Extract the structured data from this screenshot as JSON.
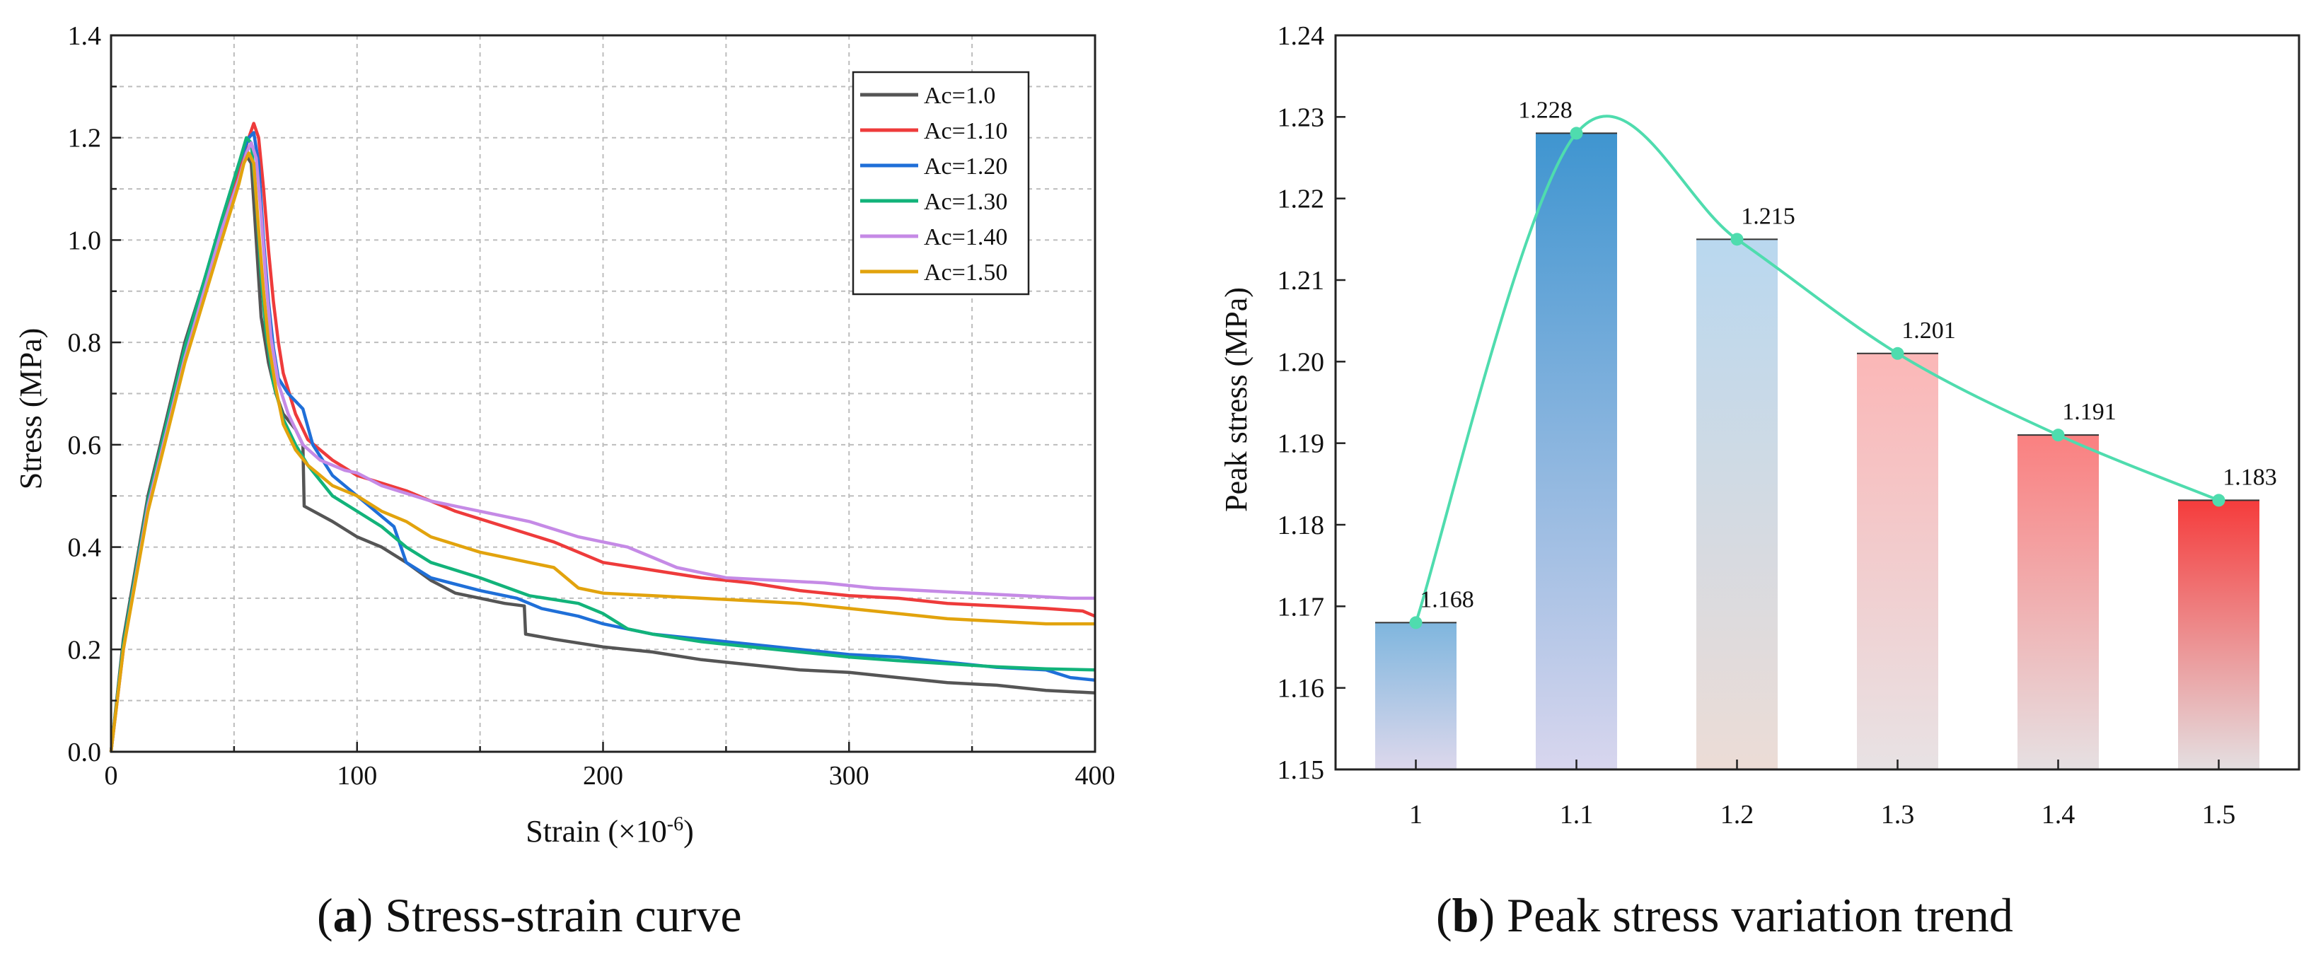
{
  "chart_data": [
    {
      "type": "line",
      "panel": "a",
      "caption_letter": "a",
      "caption_text": "Stress-strain curve",
      "xlabel_base": "Strain (×10",
      "xlabel_exp": "-6",
      "xlabel_close": ")",
      "ylabel": "Stress (MPa)",
      "xlim": [
        0,
        400
      ],
      "ylim": [
        0,
        1.4
      ],
      "xticks": [
        "0",
        "100",
        "200",
        "300",
        "400"
      ],
      "yticks": [
        "0.0",
        "0.2",
        "0.4",
        "0.6",
        "0.8",
        "1.0",
        "1.2",
        "1.4"
      ],
      "grid": true,
      "legend_position": "top-right",
      "series": [
        {
          "name": "Ac=1.0",
          "color": "#555555",
          "x": [
            0,
            5,
            15,
            30,
            45,
            52,
            55,
            57,
            59,
            61,
            64,
            67,
            70,
            75,
            78,
            78.5,
            90,
            100,
            110,
            120,
            130,
            140,
            150,
            160,
            168,
            168.5,
            180,
            200,
            220,
            240,
            260,
            280,
            300,
            320,
            340,
            360,
            380,
            400
          ],
          "y": [
            0,
            0.22,
            0.5,
            0.8,
            1.03,
            1.13,
            1.165,
            1.15,
            1.0,
            0.85,
            0.76,
            0.7,
            0.66,
            0.63,
            0.6,
            0.48,
            0.45,
            0.42,
            0.4,
            0.37,
            0.335,
            0.31,
            0.3,
            0.29,
            0.285,
            0.23,
            0.22,
            0.205,
            0.195,
            0.18,
            0.17,
            0.16,
            0.155,
            0.145,
            0.135,
            0.13,
            0.12,
            0.115
          ]
        },
        {
          "name": "Ac=1.10",
          "color": "#ee3b3b",
          "x": [
            0,
            5,
            15,
            30,
            45,
            52,
            56,
            58,
            60,
            62,
            64,
            66,
            68,
            70,
            75,
            80,
            90,
            100,
            120,
            140,
            160,
            180,
            200,
            220,
            240,
            260,
            280,
            300,
            320,
            340,
            360,
            380,
            395,
            400
          ],
          "y": [
            0,
            0.2,
            0.48,
            0.78,
            1.03,
            1.14,
            1.2,
            1.228,
            1.2,
            1.1,
            0.98,
            0.88,
            0.8,
            0.74,
            0.66,
            0.61,
            0.57,
            0.54,
            0.51,
            0.47,
            0.44,
            0.41,
            0.37,
            0.355,
            0.34,
            0.33,
            0.315,
            0.305,
            0.3,
            0.29,
            0.285,
            0.28,
            0.275,
            0.265
          ]
        },
        {
          "name": "Ac=1.20",
          "color": "#1f6fd8",
          "x": [
            0,
            5,
            15,
            30,
            45,
            52,
            56,
            58,
            60,
            62,
            64,
            66,
            68,
            72,
            78,
            82,
            90,
            100,
            110,
            115,
            120,
            130,
            150,
            165,
            175,
            190,
            200,
            220,
            240,
            260,
            280,
            300,
            320,
            340,
            360,
            380,
            390,
            400
          ],
          "y": [
            0,
            0.21,
            0.49,
            0.79,
            1.04,
            1.15,
            1.2,
            1.21,
            1.15,
            1.0,
            0.88,
            0.79,
            0.73,
            0.7,
            0.67,
            0.6,
            0.54,
            0.5,
            0.46,
            0.44,
            0.37,
            0.34,
            0.315,
            0.3,
            0.28,
            0.265,
            0.25,
            0.23,
            0.22,
            0.21,
            0.2,
            0.19,
            0.185,
            0.175,
            0.165,
            0.16,
            0.145,
            0.14
          ]
        },
        {
          "name": "Ac=1.30",
          "color": "#12b37a",
          "x": [
            0,
            5,
            15,
            30,
            45,
            52,
            55,
            57,
            59,
            61,
            63,
            66,
            70,
            75,
            80,
            90,
            100,
            110,
            120,
            130,
            150,
            170,
            190,
            200,
            210,
            220,
            240,
            260,
            280,
            300,
            320,
            340,
            360,
            380,
            400
          ],
          "y": [
            0,
            0.21,
            0.49,
            0.79,
            1.04,
            1.15,
            1.2,
            1.19,
            1.08,
            0.93,
            0.82,
            0.72,
            0.65,
            0.6,
            0.56,
            0.5,
            0.47,
            0.44,
            0.4,
            0.37,
            0.34,
            0.305,
            0.29,
            0.27,
            0.24,
            0.23,
            0.215,
            0.205,
            0.195,
            0.185,
            0.178,
            0.172,
            0.166,
            0.162,
            0.16
          ]
        },
        {
          "name": "Ac=1.40",
          "color": "#c58ae6",
          "x": [
            0,
            5,
            15,
            30,
            45,
            52,
            55,
            57,
            59,
            61,
            63,
            65,
            68,
            72,
            78,
            85,
            95,
            100,
            110,
            130,
            150,
            170,
            190,
            210,
            220,
            230,
            240,
            250,
            270,
            290,
            310,
            330,
            350,
            370,
            390,
            400
          ],
          "y": [
            0,
            0.2,
            0.48,
            0.77,
            1.02,
            1.12,
            1.17,
            1.19,
            1.16,
            1.05,
            0.92,
            0.81,
            0.72,
            0.66,
            0.6,
            0.57,
            0.55,
            0.545,
            0.52,
            0.49,
            0.47,
            0.45,
            0.42,
            0.4,
            0.38,
            0.36,
            0.35,
            0.34,
            0.335,
            0.33,
            0.32,
            0.315,
            0.31,
            0.305,
            0.3,
            0.3
          ]
        },
        {
          "name": "Ac=1.50",
          "color": "#e2a30d",
          "x": [
            0,
            5,
            15,
            30,
            45,
            52,
            54,
            56,
            58,
            60,
            62,
            64,
            67,
            70,
            75,
            80,
            90,
            100,
            110,
            120,
            130,
            150,
            170,
            180,
            190,
            200,
            220,
            240,
            260,
            280,
            300,
            320,
            340,
            360,
            380,
            400
          ],
          "y": [
            0,
            0.2,
            0.47,
            0.76,
            1.0,
            1.11,
            1.15,
            1.17,
            1.15,
            1.02,
            0.9,
            0.8,
            0.71,
            0.64,
            0.59,
            0.56,
            0.52,
            0.5,
            0.47,
            0.45,
            0.42,
            0.39,
            0.37,
            0.36,
            0.32,
            0.31,
            0.305,
            0.3,
            0.295,
            0.29,
            0.28,
            0.27,
            0.26,
            0.255,
            0.25,
            0.25
          ]
        }
      ]
    },
    {
      "type": "bar",
      "panel": "b",
      "caption_letter": "b",
      "caption_text": "Peak stress variation trend",
      "xlabel": "",
      "ylabel": "Peak stress (MPa)",
      "ylim": [
        1.15,
        1.24
      ],
      "yticks": [
        "1.15",
        "1.16",
        "1.17",
        "1.18",
        "1.19",
        "1.20",
        "1.21",
        "1.22",
        "1.23",
        "1.24"
      ],
      "categories": [
        "1",
        "1.1",
        "1.2",
        "1.3",
        "1.4",
        "1.5"
      ],
      "values": [
        1.168,
        1.228,
        1.215,
        1.201,
        1.191,
        1.183
      ],
      "labels": [
        "1.168",
        "1.228",
        "1.215",
        "1.201",
        "1.191",
        "1.183"
      ],
      "bar_colors": [
        {
          "top": "#7fb6de",
          "bottom": "#ddd8ec"
        },
        {
          "top": "#3f95d0",
          "bottom": "#d8d6ee"
        },
        {
          "top": "#b9d8ef",
          "bottom": "#ecdcd6"
        },
        {
          "top": "#fbb7b7",
          "bottom": "#e8e2e4"
        },
        {
          "top": "#fa8080",
          "bottom": "#e6e0e2"
        },
        {
          "top": "#f53c3c",
          "bottom": "#e4dfe1"
        }
      ],
      "trend_color": "#4fdcae"
    }
  ]
}
